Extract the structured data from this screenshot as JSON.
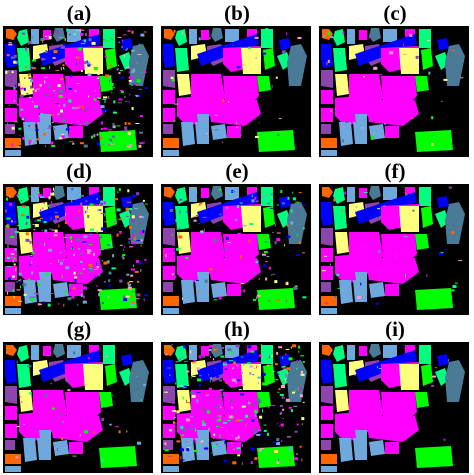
{
  "panels": [
    {
      "label": "(a)",
      "noise": "high",
      "seed": 11
    },
    {
      "label": "(b)",
      "noise": "low",
      "seed": 23
    },
    {
      "label": "(c)",
      "noise": "low",
      "seed": 37
    },
    {
      "label": "(d)",
      "noise": "high",
      "seed": 41
    },
    {
      "label": "(e)",
      "noise": "medium",
      "seed": 53
    },
    {
      "label": "(f)",
      "noise": "low",
      "seed": 67
    },
    {
      "label": "(g)",
      "noise": "low",
      "seed": 71
    },
    {
      "label": "(h)",
      "noise": "high",
      "seed": 83
    },
    {
      "label": "(i)",
      "noise": "very-low",
      "seed": 97
    }
  ],
  "class_colors": {
    "magenta": "#ff00ff",
    "blue": "#0000ff",
    "green": "#00ff00",
    "light_blue": "#6fa8dc",
    "yellow": "#ffff80",
    "orange": "#ff6600",
    "purple": "#8e44ad",
    "teal": "#4a7a96",
    "spring_green": "#00ff80",
    "pink": "#ff99cc",
    "background": "#000000"
  }
}
